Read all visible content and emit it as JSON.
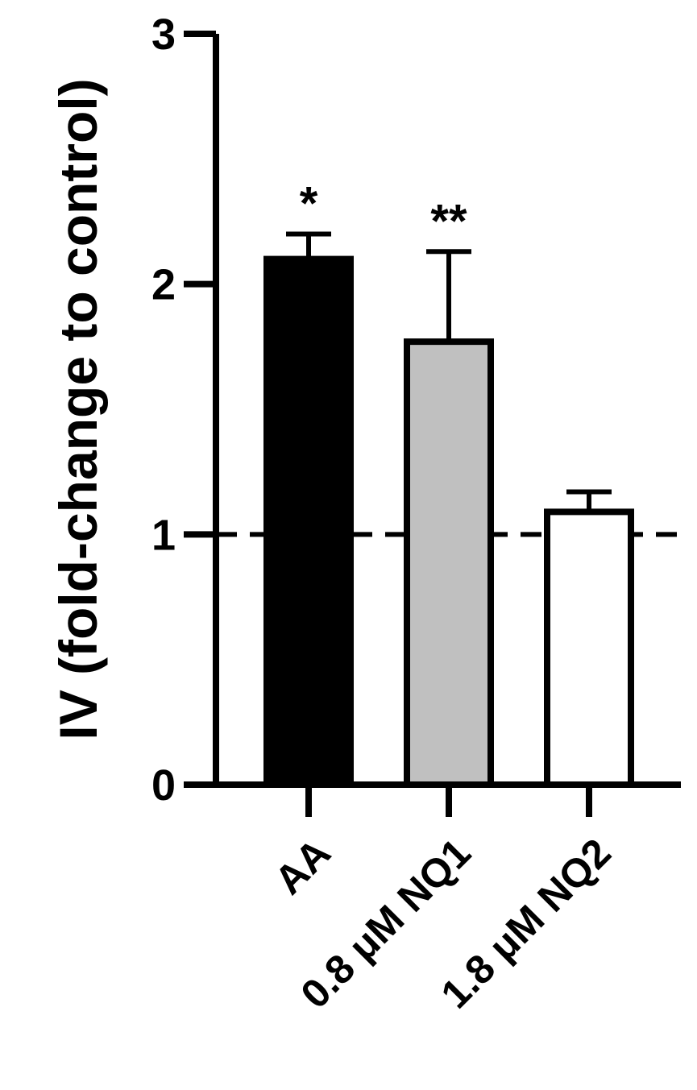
{
  "chart_data": {
    "type": "bar",
    "title": "",
    "ylabel": "IV (fold-change to control)",
    "xlabel": "",
    "ylim": [
      0,
      3
    ],
    "yticks": [
      0,
      1,
      2,
      3
    ],
    "ytick_labels": [
      "0",
      "1",
      "2",
      "3"
    ],
    "categories": [
      "AA",
      "0.8 μM NQ1",
      "1.8 μM NQ2"
    ],
    "values": [
      2.1,
      1.77,
      1.09
    ],
    "error": [
      0.1,
      0.36,
      0.08
    ],
    "significance": [
      "*",
      "**",
      ""
    ],
    "bar_fills": [
      "#000000",
      "#c0c0c0",
      "#ffffff"
    ],
    "reference_line": {
      "y": 1,
      "style": "dashed",
      "color": "#000000"
    },
    "grid": false,
    "legend": "none"
  }
}
